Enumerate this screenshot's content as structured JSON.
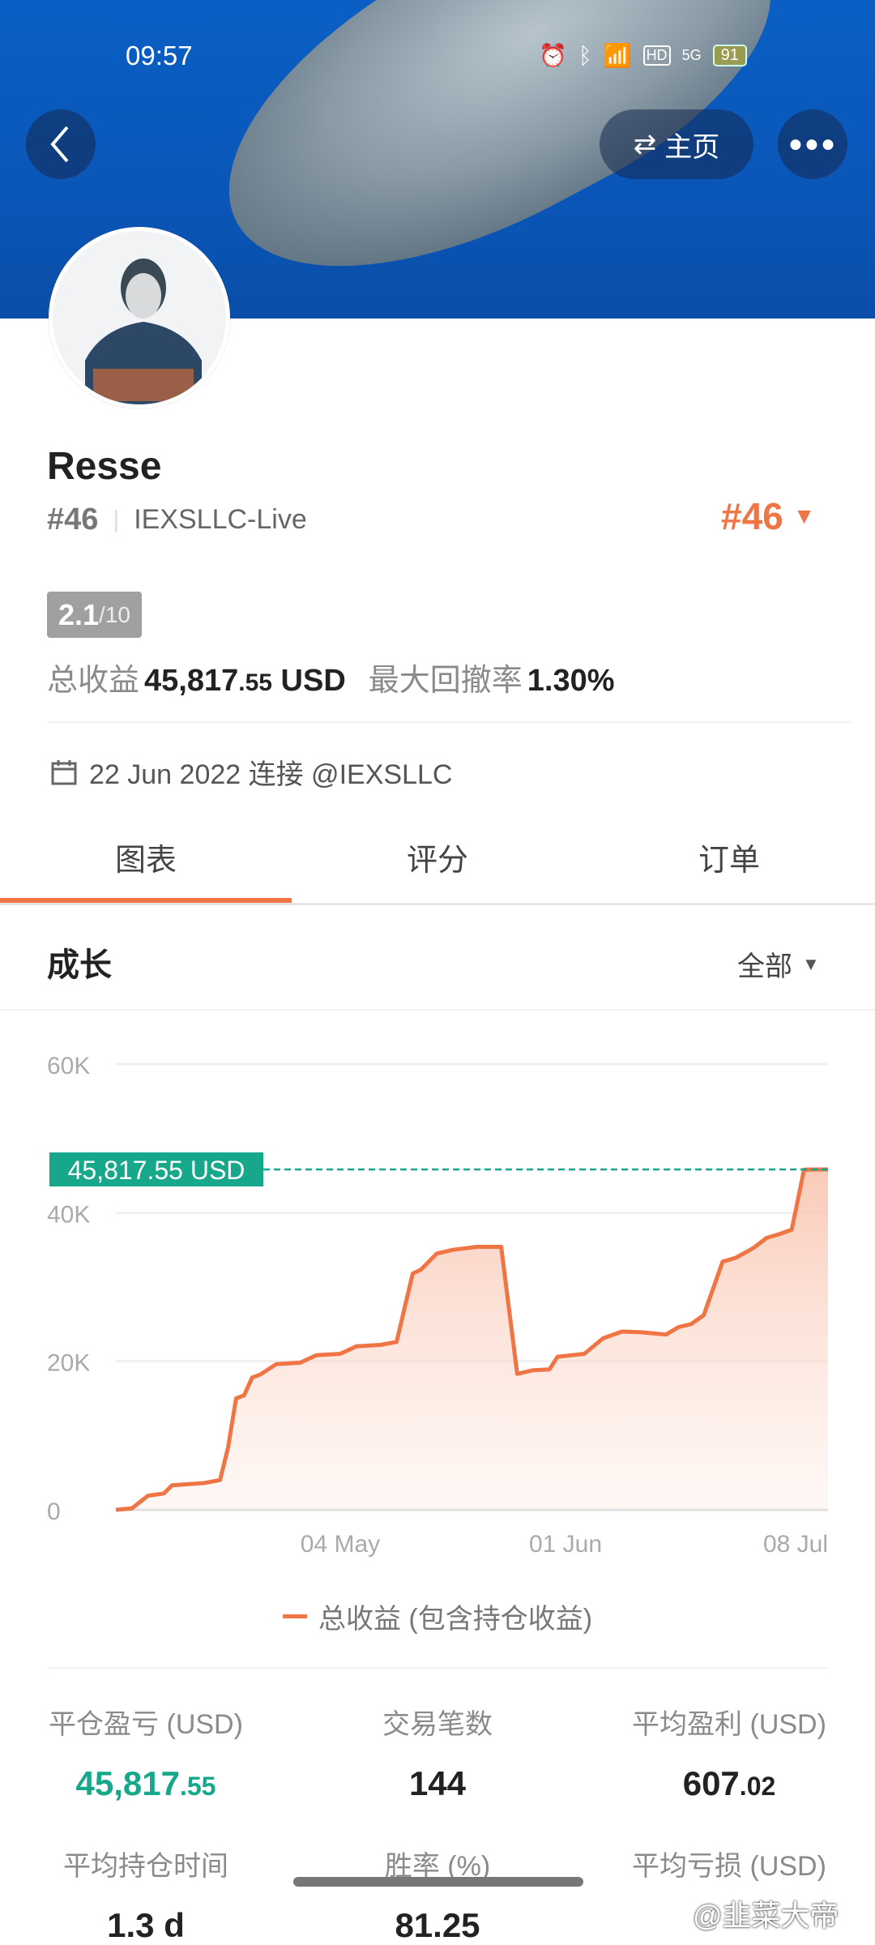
{
  "status_bar": {
    "time": "09:57",
    "battery": "91",
    "network": "5G",
    "icons": [
      "alarm-icon",
      "bluetooth-icon",
      "wifi-icon",
      "hd-icon",
      "signal-icon",
      "battery-icon"
    ]
  },
  "header": {
    "back_icon": "chevron-left-icon",
    "home_label": "主页",
    "home_icon": "swap-icon",
    "more_icon": "more-dots-icon"
  },
  "profile": {
    "name": "Resse",
    "rank": "#46",
    "separator": "|",
    "account": "IEXSLLC-Live",
    "rank_right": "#46",
    "score": "2.1",
    "score_max": "/10",
    "total_label": "总收益",
    "total_int": "45,817",
    "total_dec": ".55",
    "total_unit": " USD",
    "drawdown_label": "最大回撤率",
    "drawdown_value": "1.30%",
    "connected": "22 Jun 2022 连接 @IEXSLLC"
  },
  "tabs": [
    {
      "label": "图表",
      "active": true
    },
    {
      "label": "评分"
    },
    {
      "label": "订单"
    }
  ],
  "section": {
    "title": "成长",
    "filter": "全部"
  },
  "colors": {
    "accent": "#f07545",
    "positive": "#17a88c"
  },
  "chart_data": {
    "type": "area",
    "ylim": [
      0,
      60000
    ],
    "yticks": [
      "0",
      "20K",
      "40K",
      "60K"
    ],
    "xticks": [
      "04 May",
      "01 Jun",
      "08 Jul"
    ],
    "current_label": "45,817.55 USD",
    "grid": true,
    "legend_position": "bottom",
    "series": [
      {
        "name": "总收益 (包含持仓收益)",
        "points": [
          [
            "2022-04-06",
            0
          ],
          [
            "2022-04-08",
            200
          ],
          [
            "2022-04-10",
            1900
          ],
          [
            "2022-04-12",
            2200
          ],
          [
            "2022-04-13",
            3300
          ],
          [
            "2022-04-17",
            3600
          ],
          [
            "2022-04-19",
            4000
          ],
          [
            "2022-04-20",
            8400
          ],
          [
            "2022-04-21",
            15000
          ],
          [
            "2022-04-22",
            15400
          ],
          [
            "2022-04-23",
            17800
          ],
          [
            "2022-04-24",
            18200
          ],
          [
            "2022-04-26",
            19600
          ],
          [
            "2022-04-29",
            19800
          ],
          [
            "2022-05-01",
            20800
          ],
          [
            "2022-05-04",
            21000
          ],
          [
            "2022-05-06",
            22000
          ],
          [
            "2022-05-09",
            22200
          ],
          [
            "2022-05-11",
            22600
          ],
          [
            "2022-05-13",
            31800
          ],
          [
            "2022-05-14",
            32300
          ],
          [
            "2022-05-16",
            34500
          ],
          [
            "2022-05-18",
            35000
          ],
          [
            "2022-05-21",
            35400
          ],
          [
            "2022-05-24",
            35400
          ],
          [
            "2022-05-26",
            18300
          ],
          [
            "2022-05-28",
            18800
          ],
          [
            "2022-05-30",
            18900
          ],
          [
            "2022-05-31",
            20600
          ],
          [
            "2022-06-04",
            21000
          ],
          [
            "2022-06-07",
            23100
          ],
          [
            "2022-06-10",
            24000
          ],
          [
            "2022-06-13",
            23900
          ],
          [
            "2022-06-17",
            23600
          ],
          [
            "2022-06-19",
            24600
          ],
          [
            "2022-06-21",
            25000
          ],
          [
            "2022-06-23",
            26200
          ],
          [
            "2022-06-26",
            33400
          ],
          [
            "2022-06-28",
            33900
          ],
          [
            "2022-06-30",
            34800
          ],
          [
            "2022-07-01",
            35300
          ],
          [
            "2022-07-03",
            36600
          ],
          [
            "2022-07-05",
            37100
          ],
          [
            "2022-07-07",
            37700
          ],
          [
            "2022-07-09",
            45800
          ],
          [
            "2022-07-13",
            45817.55
          ]
        ]
      }
    ]
  },
  "stats": [
    {
      "label": "平仓盈亏 (USD)",
      "int": "45,817",
      "dec": ".55",
      "color": "#17a88c"
    },
    {
      "label": "交易笔数",
      "int": "144",
      "dec": ""
    },
    {
      "label": "平均盈利 (USD)",
      "int": "607",
      "dec": ".02"
    },
    {
      "label": "平均持仓时间",
      "int": "1.3 d",
      "dec": ""
    },
    {
      "label": "胜率 (%)",
      "int": "81.25",
      "dec": ""
    },
    {
      "label": "平均亏损 (USD)",
      "int": "",
      "dec": ""
    }
  ],
  "watermark": "@韭菜大帝"
}
